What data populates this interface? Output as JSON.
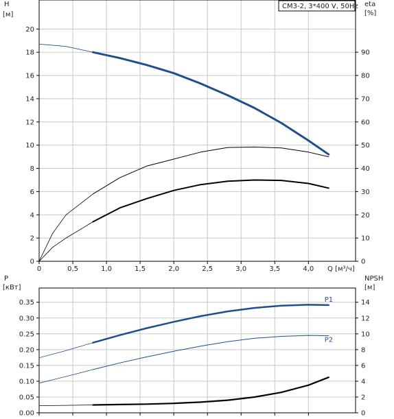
{
  "chart_data": [
    {
      "type": "line",
      "title": "CM3-2, 3*400 V, 50Hz",
      "xlabel": "Q [м³/ч]",
      "ylabel_left": [
        "H",
        "[м]"
      ],
      "ylabel_right": [
        "eta",
        "[%]"
      ],
      "x_ticks": [
        "0",
        "0,5",
        "1,0",
        "1,5",
        "2,0",
        "2,5",
        "3,0",
        "3,5",
        "4,0"
      ],
      "y_left_ticks": [
        "0",
        "2",
        "4",
        "6",
        "8",
        "10",
        "12",
        "14",
        "16",
        "18",
        "20"
      ],
      "y_right_ticks": [
        "0",
        "10",
        "20",
        "30",
        "40",
        "50",
        "60",
        "70",
        "80",
        "90"
      ],
      "xlim": [
        0,
        4.7
      ],
      "ylim_left": [
        0,
        22.5
      ],
      "ylim_right": [
        0,
        112.5
      ],
      "grid": true,
      "series": [
        {
          "axis": "left",
          "color": "#1f4e8c",
          "x": [
            0,
            0.4,
            0.8,
            1.2,
            1.6,
            2.0,
            2.4,
            2.8,
            3.2,
            3.6,
            4.0,
            4.3
          ],
          "y": [
            18.7,
            18.5,
            18.0,
            17.5,
            16.9,
            16.2,
            15.3,
            14.3,
            13.2,
            11.9,
            10.4,
            9.2
          ]
        },
        {
          "axis": "right",
          "color": "#000000",
          "x": [
            0,
            0.2,
            0.4,
            0.8,
            1.2,
            1.6,
            2.0,
            2.4,
            2.8,
            3.2,
            3.6,
            4.0,
            4.3
          ],
          "y": [
            0,
            12,
            20,
            29,
            36,
            41,
            44,
            47,
            49,
            49.2,
            48.8,
            47,
            45
          ]
        },
        {
          "axis": "right",
          "color": "#000000",
          "x": [
            0,
            0.2,
            0.4,
            0.8,
            1.2,
            1.6,
            2.0,
            2.4,
            2.8,
            3.2,
            3.6,
            4.0,
            4.3
          ],
          "y": [
            0,
            6,
            10,
            17,
            23,
            27,
            30.5,
            33,
            34.5,
            35,
            34.8,
            33.5,
            31.5
          ]
        }
      ]
    },
    {
      "type": "line",
      "xlabel": "",
      "ylabel_left": [
        "P",
        "[кВт]"
      ],
      "ylabel_right": [
        "NPSH",
        "[м]"
      ],
      "y_left_ticks": [
        "0.00",
        "0.05",
        "0.10",
        "0.15",
        "0.20",
        "0.25",
        "0.30",
        "0.35"
      ],
      "y_right_ticks": [
        "0",
        "2",
        "4",
        "6",
        "8",
        "10",
        "12",
        "14"
      ],
      "xlim": [
        0,
        4.7
      ],
      "ylim_left": [
        0,
        0.395
      ],
      "ylim_right": [
        0,
        15.8
      ],
      "grid": true,
      "series": [
        {
          "name": "P1",
          "axis": "left",
          "color": "#1f4e8c",
          "x": [
            0,
            0.4,
            0.8,
            1.2,
            1.6,
            2.0,
            2.4,
            2.8,
            3.2,
            3.6,
            4.0,
            4.3
          ],
          "y": [
            0.174,
            0.197,
            0.222,
            0.246,
            0.268,
            0.288,
            0.306,
            0.321,
            0.332,
            0.339,
            0.342,
            0.341
          ]
        },
        {
          "name": "P2",
          "axis": "left",
          "color": "#1f4e8c",
          "x": [
            0,
            0.4,
            0.8,
            1.2,
            1.6,
            2.0,
            2.4,
            2.8,
            3.2,
            3.6,
            4.0,
            4.3
          ],
          "y": [
            0.094,
            0.115,
            0.137,
            0.158,
            0.177,
            0.195,
            0.211,
            0.225,
            0.236,
            0.242,
            0.245,
            0.244
          ]
        },
        {
          "axis": "right",
          "color": "#000000",
          "x": [
            0,
            0.4,
            0.8,
            1.2,
            1.6,
            2.0,
            2.4,
            2.8,
            3.2,
            3.6,
            4.0,
            4.3
          ],
          "y": [
            0.9,
            0.95,
            1.0,
            1.05,
            1.1,
            1.2,
            1.35,
            1.6,
            2.0,
            2.6,
            3.5,
            4.5
          ]
        }
      ]
    }
  ]
}
